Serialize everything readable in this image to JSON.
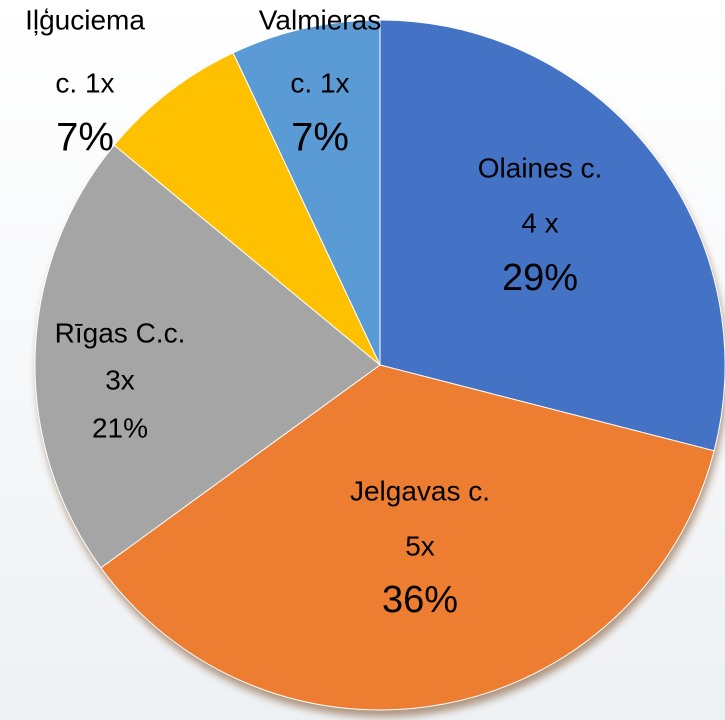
{
  "chart_data": {
    "type": "pie",
    "categories": [
      "Olaines c.",
      "Jelgavas c.",
      "Rīgas C.c.",
      "Iļģuciema",
      "Valmieras"
    ],
    "counts": [
      "4 x",
      "5x",
      "3x",
      "c. 1x",
      "c. 1x"
    ],
    "values": [
      29,
      36,
      21,
      7,
      7
    ],
    "value_labels": [
      "29%",
      "36%",
      "21%",
      "7%",
      "7%"
    ],
    "colors": [
      "#4472c4",
      "#ed7d31",
      "#a5a5a5",
      "#ffc000",
      "#5b9bd5"
    ]
  }
}
